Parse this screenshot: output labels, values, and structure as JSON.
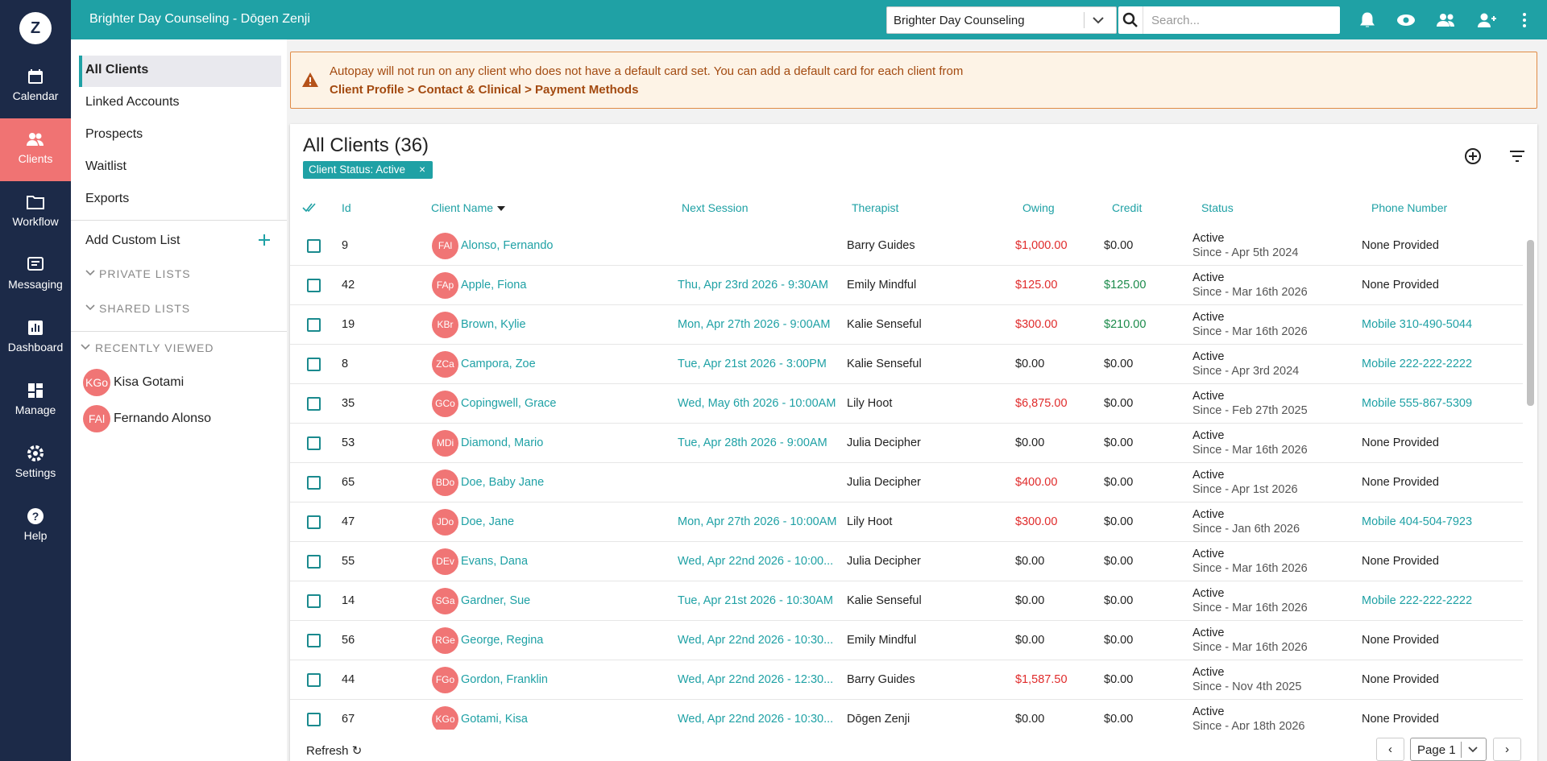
{
  "topbar": {
    "title": "Brighter Day Counseling - Dōgen Zenji",
    "practice_select": "Brighter Day Counseling",
    "search_placeholder": "Search..."
  },
  "nav": {
    "logo": "Z",
    "items": [
      "Calendar",
      "Clients",
      "Workflow",
      "Messaging",
      "Dashboard",
      "Manage",
      "Settings",
      "Help"
    ]
  },
  "sidebar": {
    "lists": [
      "All Clients",
      "Linked Accounts",
      "Prospects",
      "Waitlist",
      "Exports"
    ],
    "add_custom_list": "Add Custom List",
    "private_lists": "PRIVATE LISTS",
    "shared_lists": "SHARED LISTS",
    "recently_viewed": "RECENTLY VIEWED",
    "recent": [
      {
        "initials": "KGo",
        "name": "Kisa Gotami"
      },
      {
        "initials": "FAl",
        "name": "Fernando Alonso"
      }
    ]
  },
  "alert": {
    "text": "Autopay will not run on any client who does not have a default card set. You can add a default card for each client from",
    "link": "Client Profile > Contact & Clinical > Payment Methods"
  },
  "table": {
    "title": "All Clients (36)",
    "filter": "Client Status: Active",
    "columns": [
      "Id",
      "Client Name",
      "Next Session",
      "Therapist",
      "Owing",
      "Credit",
      "Status",
      "Phone Number"
    ],
    "rows": [
      {
        "id": 9,
        "initials": "FAl",
        "name": "Alonso, Fernando",
        "next_session": null,
        "therapist": "Barry Guides",
        "owing": "$1,000.00",
        "credit": "$0.00",
        "status": "Active",
        "since": "Since - Apr 5th 2024",
        "phone": "None Provided"
      },
      {
        "id": 42,
        "initials": "FAp",
        "name": "Apple, Fiona",
        "next_session": "Thu, Apr 23rd 2026 - 9:30AM",
        "therapist": "Emily Mindful",
        "owing": "$125.00",
        "credit": "$125.00",
        "status": "Active",
        "since": "Since - Mar 16th 2026",
        "phone": "None Provided"
      },
      {
        "id": 19,
        "initials": "KBr",
        "name": "Brown, Kylie",
        "next_session": "Mon, Apr 27th 2026 - 9:00AM",
        "therapist": "Kalie Senseful",
        "owing": "$300.00",
        "credit": "$210.00",
        "status": "Active",
        "since": "Since - Mar 16th 2026",
        "phone": "Mobile 310-490-5044"
      },
      {
        "id": 8,
        "initials": "ZCa",
        "name": "Campora, Zoe",
        "next_session": "Tue, Apr 21st 2026 - 3:00PM",
        "therapist": "Kalie Senseful",
        "owing": "$0.00",
        "credit": "$0.00",
        "status": "Active",
        "since": "Since - Apr 3rd 2024",
        "phone": "Mobile 222-222-2222"
      },
      {
        "id": 35,
        "initials": "GCo",
        "name": "Copingwell, Grace",
        "next_session": "Wed, May 6th 2026 - 10:00AM",
        "therapist": "Lily Hoot",
        "owing": "$6,875.00",
        "credit": "$0.00",
        "status": "Active",
        "since": "Since - Feb 27th 2025",
        "phone": "Mobile 555-867-5309"
      },
      {
        "id": 53,
        "initials": "MDi",
        "name": "Diamond, Mario",
        "next_session": "Tue, Apr 28th 2026 - 9:00AM",
        "therapist": "Julia Decipher",
        "owing": "$0.00",
        "credit": "$0.00",
        "status": "Active",
        "since": "Since - Mar 16th 2026",
        "phone": "None Provided"
      },
      {
        "id": 65,
        "initials": "BDo",
        "name": "Doe, Baby Jane",
        "next_session": null,
        "therapist": "Julia Decipher",
        "owing": "$400.00",
        "credit": "$0.00",
        "status": "Active",
        "since": "Since - Apr 1st 2026",
        "phone": "None Provided"
      },
      {
        "id": 47,
        "initials": "JDo",
        "name": "Doe, Jane",
        "next_session": "Mon, Apr 27th 2026 - 10:00AM",
        "therapist": "Lily Hoot",
        "owing": "$300.00",
        "credit": "$0.00",
        "status": "Active",
        "since": "Since - Jan 6th 2026",
        "phone": "Mobile 404-504-7923"
      },
      {
        "id": 55,
        "initials": "DEv",
        "name": "Evans, Dana",
        "next_session": "Wed, Apr 22nd 2026 - 10:00...",
        "therapist": "Julia Decipher",
        "owing": "$0.00",
        "credit": "$0.00",
        "status": "Active",
        "since": "Since - Mar 16th 2026",
        "phone": "None Provided"
      },
      {
        "id": 14,
        "initials": "SGa",
        "name": "Gardner, Sue",
        "next_session": "Tue, Apr 21st 2026 - 10:30AM",
        "therapist": "Kalie Senseful",
        "owing": "$0.00",
        "credit": "$0.00",
        "status": "Active",
        "since": "Since - Mar 16th 2026",
        "phone": "Mobile 222-222-2222"
      },
      {
        "id": 56,
        "initials": "RGe",
        "name": "George, Regina",
        "next_session": "Wed, Apr 22nd 2026 - 10:30...",
        "therapist": "Emily Mindful",
        "owing": "$0.00",
        "credit": "$0.00",
        "status": "Active",
        "since": "Since - Mar 16th 2026",
        "phone": "None Provided"
      },
      {
        "id": 44,
        "initials": "FGo",
        "name": "Gordon, Franklin",
        "next_session": "Wed, Apr 22nd 2026 - 12:30...",
        "therapist": "Barry Guides",
        "owing": "$1,587.50",
        "credit": "$0.00",
        "status": "Active",
        "since": "Since - Nov 4th 2025",
        "phone": "None Provided"
      },
      {
        "id": 67,
        "initials": "KGo",
        "name": "Gotami, Kisa",
        "next_session": "Wed, Apr 22nd 2026 - 10:30...",
        "therapist": "Dōgen Zenji",
        "owing": "$0.00",
        "credit": "$0.00",
        "status": "Active",
        "since": "Since - Apr 18th 2026",
        "phone": "None Provided"
      }
    ]
  },
  "footer": {
    "refresh": "Refresh",
    "page": "Page 1"
  }
}
